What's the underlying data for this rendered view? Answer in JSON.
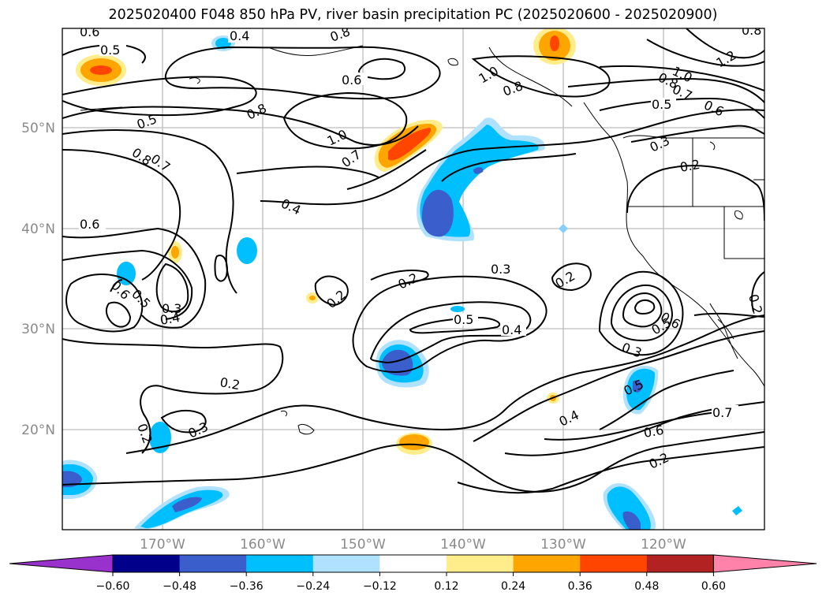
{
  "title": "2025020400 F048 850 hPa PV, river basin precipitation PC (2025020600 - 2025020900)",
  "map": {
    "lat_labels": [
      "50°N",
      "40°N",
      "30°N",
      "20°N"
    ],
    "lon_labels": [
      "170°W",
      "160°W",
      "150°W",
      "140°W",
      "130°W",
      "120°W"
    ],
    "contour_labels": [
      {
        "id": "c01",
        "text": "0.6"
      },
      {
        "id": "c02",
        "text": "0.5"
      },
      {
        "id": "c03",
        "text": "0.4"
      },
      {
        "id": "c04",
        "text": "0.8"
      },
      {
        "id": "c05",
        "text": "0.6"
      },
      {
        "id": "c06",
        "text": "1.0"
      },
      {
        "id": "c07",
        "text": "0.8"
      },
      {
        "id": "c08",
        "text": "0.8"
      },
      {
        "id": "c09",
        "text": "1.2"
      },
      {
        "id": "c10",
        "text": "1.0"
      },
      {
        "id": "c11",
        "text": "0.8"
      },
      {
        "id": "c12",
        "text": "0.7"
      },
      {
        "id": "c13",
        "text": "0.6"
      },
      {
        "id": "c14",
        "text": "0.5"
      },
      {
        "id": "c15",
        "text": "0.8"
      },
      {
        "id": "c16",
        "text": "1.0"
      },
      {
        "id": "c17",
        "text": "0.7"
      },
      {
        "id": "c18",
        "text": "0.5"
      },
      {
        "id": "c19",
        "text": "0.8"
      },
      {
        "id": "c20",
        "text": "0.7"
      },
      {
        "id": "c21",
        "text": "0.3"
      },
      {
        "id": "c22",
        "text": "0.2"
      },
      {
        "id": "c23",
        "text": "0.4"
      },
      {
        "id": "c24",
        "text": "0.6"
      },
      {
        "id": "c25",
        "text": "0.6"
      },
      {
        "id": "c26",
        "text": "0.5"
      },
      {
        "id": "c27",
        "text": "0.3"
      },
      {
        "id": "c28",
        "text": "0.4"
      },
      {
        "id": "c29",
        "text": "0.2"
      },
      {
        "id": "c30",
        "text": "0.3"
      },
      {
        "id": "c31",
        "text": "0.2"
      },
      {
        "id": "c32",
        "text": "0.2"
      },
      {
        "id": "c33",
        "text": "0.5"
      },
      {
        "id": "c34",
        "text": "0.4"
      },
      {
        "id": "c35",
        "text": "0.6"
      },
      {
        "id": "c36",
        "text": "0.5"
      },
      {
        "id": "c37",
        "text": "0.2"
      },
      {
        "id": "c38",
        "text": "0.3"
      },
      {
        "id": "c39",
        "text": "0.2"
      },
      {
        "id": "c40",
        "text": "0.2"
      },
      {
        "id": "c41",
        "text": "0.3"
      },
      {
        "id": "c42",
        "text": "0.5"
      },
      {
        "id": "c43",
        "text": "0.4"
      },
      {
        "id": "c44",
        "text": "0.7"
      },
      {
        "id": "c45",
        "text": "0.6"
      },
      {
        "id": "c46",
        "text": "0.2"
      }
    ]
  },
  "colorbar": {
    "ticks": [
      "−0.60",
      "−0.48",
      "−0.36",
      "−0.24",
      "−0.12",
      "0.12",
      "0.24",
      "0.36",
      "0.48",
      "0.60"
    ],
    "colors": [
      "#9932cc",
      "#00008b",
      "#3a5fcd",
      "#00bfff",
      "#b0e2ff",
      "#ffffff",
      "#ffec8b",
      "#ffa500",
      "#ff4500",
      "#b22222",
      "#ff82ab"
    ]
  }
}
